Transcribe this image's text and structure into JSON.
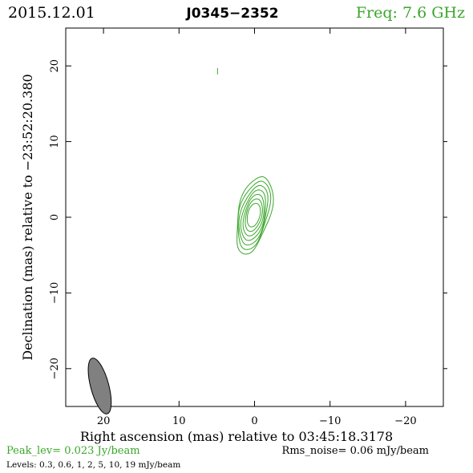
{
  "header": {
    "date": "2015.12.01",
    "source": "J0345−2352",
    "frequency": "Freq: 7.6 GHz"
  },
  "footer": {
    "peak": "Peak_lev=  0.023 Jy/beam",
    "rms": "Rms_noise= 0.06 mJy/beam",
    "levels": "Levels: 0.3, 0.6,    1,    2,    5,   10,   19  mJy/beam"
  },
  "colors": {
    "accent": "#3aa62a",
    "axis": "#000000",
    "beam_fill": "#808080"
  },
  "chart_data": {
    "type": "contour",
    "xlabel": "Right ascension (mas) relative to 03:45:18.3178",
    "ylabel": "Declination (mas) relative to −23:52:20.380",
    "xlim": [
      25,
      -25
    ],
    "ylim": [
      -25,
      25
    ],
    "x_ticks": [
      20,
      10,
      0,
      -10,
      -20
    ],
    "x_tick_labels": [
      "20",
      "10",
      "0",
      "−10",
      "−20"
    ],
    "y_ticks": [
      20,
      10,
      0,
      -10,
      -20
    ],
    "y_tick_labels": [
      "20",
      "10",
      "0",
      "−10",
      "−20"
    ],
    "contour_levels_mJy": [
      0.3,
      0.6,
      1,
      2,
      5,
      10,
      19
    ],
    "peak_Jy_per_beam": 0.023,
    "rms_noise_mJy_per_beam": 0.06,
    "source_center": [
      0.1,
      0.3
    ],
    "beam": {
      "x": 20.5,
      "y": -22.3,
      "major": 3.8,
      "minor": 1.2,
      "pa_deg": -15
    },
    "marker": {
      "x": 4.9,
      "y": 19.3
    }
  }
}
